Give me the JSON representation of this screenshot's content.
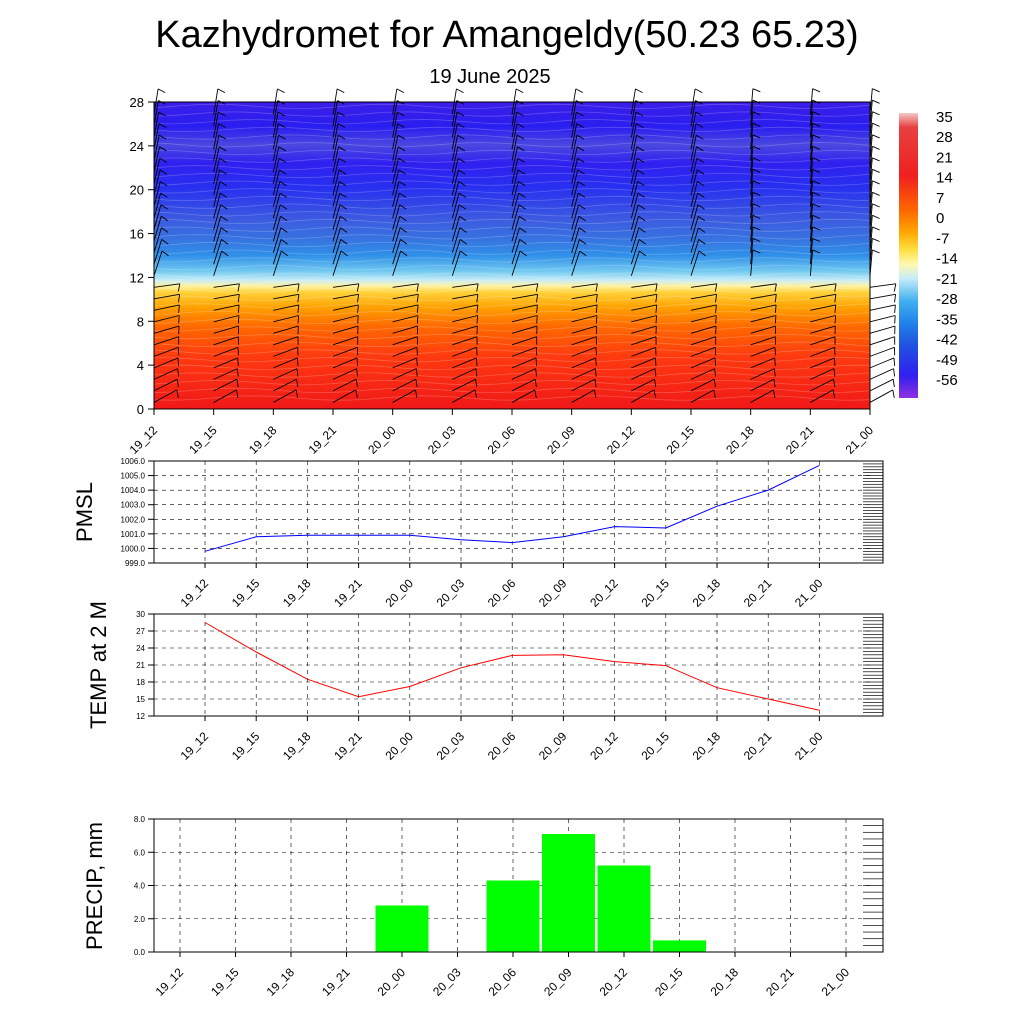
{
  "header": {
    "title": "Kazhydromet for Amangeldy(50.23 65.23)",
    "subtitle": "19 June 2025"
  },
  "colors": {
    "pmsl_line": "#0000ff",
    "temp_line": "#ff0000",
    "precip_bar": "#00ff00",
    "grid": "#000000"
  },
  "chart_data": [
    {
      "type": "heatmap",
      "name": "temperature-cross-section",
      "x_ticks": [
        "19_12",
        "19_15",
        "19_18",
        "19_21",
        "20_00",
        "20_03",
        "20_06",
        "20_09",
        "20_12",
        "20_15",
        "20_18",
        "20_21",
        "21_00"
      ],
      "ylim": [
        0,
        28
      ],
      "y_ticks": [
        0,
        4,
        8,
        12,
        16,
        20,
        24,
        28
      ],
      "colorbar": {
        "labels": [
          "35",
          "28",
          "21",
          "14",
          "7",
          "0",
          "-7",
          "-14",
          "-21",
          "-28",
          "-35",
          "-42",
          "-49",
          "-56"
        ]
      },
      "wind_barbs": true
    },
    {
      "type": "line",
      "name": "pmsl",
      "ylabel": "PMSL",
      "categories": [
        "19_12",
        "19_15",
        "19_18",
        "19_21",
        "20_00",
        "20_03",
        "20_06",
        "20_09",
        "20_12",
        "20_15",
        "20_18",
        "20_21",
        "21_00"
      ],
      "values": [
        999.8,
        1000.8,
        1000.9,
        1000.9,
        1000.9,
        1000.6,
        1000.4,
        1000.8,
        1001.5,
        1001.4,
        1002.9,
        1004.0,
        1005.7
      ],
      "ylim": [
        999.0,
        1006.0
      ],
      "y_ticks": [
        "999.0",
        "1000.0",
        "1001.0",
        "1002.0",
        "1003.0",
        "1004.0",
        "1005.0",
        "1006.0"
      ],
      "grid": true
    },
    {
      "type": "line",
      "name": "temp-2m",
      "ylabel": "TEMP at 2 M",
      "categories": [
        "19_12",
        "19_15",
        "19_18",
        "19_21",
        "20_00",
        "20_03",
        "20_06",
        "20_09",
        "20_12",
        "20_15",
        "20_18",
        "20_21",
        "21_00"
      ],
      "values": [
        28.5,
        23.3,
        18.5,
        15.4,
        17.2,
        20.5,
        22.7,
        22.8,
        21.6,
        20.9,
        17.0,
        15.0,
        13.0
      ],
      "ylim": [
        12,
        30
      ],
      "y_ticks": [
        "12",
        "15",
        "18",
        "21",
        "24",
        "27",
        "30"
      ],
      "grid": true
    },
    {
      "type": "bar",
      "name": "precip",
      "ylabel": "PRECIP, mm",
      "categories": [
        "19_12",
        "19_15",
        "19_18",
        "19_21",
        "20_00",
        "20_03",
        "20_06",
        "20_09",
        "20_12",
        "20_15",
        "20_18",
        "20_21",
        "21_00"
      ],
      "values": [
        0,
        0,
        0,
        0,
        2.8,
        0,
        4.3,
        7.1,
        5.2,
        0.7,
        0,
        0,
        0
      ],
      "ylim": [
        0,
        8.0
      ],
      "y_ticks": [
        "0.0",
        "2.0",
        "4.0",
        "6.0",
        "8.0"
      ],
      "grid": true
    }
  ]
}
